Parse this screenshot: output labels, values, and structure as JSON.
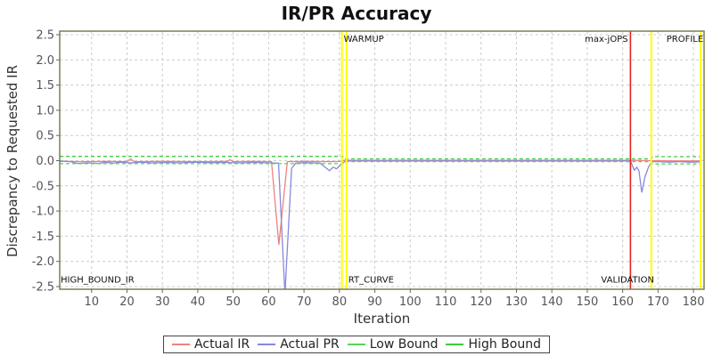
{
  "chart_data": {
    "type": "line",
    "title": "IR/PR Accuracy",
    "xlabel": "Iteration",
    "ylabel": "Discrepancy to Requested IR",
    "xlim": [
      1,
      183
    ],
    "ylim": [
      -2.5,
      2.5
    ],
    "grid": true,
    "legend_position": "bottom",
    "x_ticks": [
      10,
      20,
      30,
      40,
      50,
      60,
      70,
      80,
      90,
      100,
      110,
      120,
      130,
      140,
      150,
      160,
      170,
      180
    ],
    "y_ticks": [
      "2.5",
      "2.0",
      "1.5",
      "1.0",
      "0.5",
      "0.0",
      "-0.5",
      "-1.0",
      "-1.5",
      "-2.0",
      "-2.5"
    ],
    "colors": {
      "grid": "#cccccc",
      "border": "#74744a",
      "tick": "#666666",
      "tick_label": "#555555",
      "annotation": "#111111",
      "warmup_marker": "#ffff00",
      "max_jops_marker": "#e82222"
    },
    "series": [
      {
        "name": "Actual IR",
        "color": "#f08080",
        "style": "solid",
        "points": [
          [
            1,
            -0.015
          ],
          [
            8,
            -0.02
          ],
          [
            15,
            -0.015
          ],
          [
            20,
            -0.02
          ],
          [
            21,
            0.035
          ],
          [
            22,
            -0.02
          ],
          [
            30,
            -0.015
          ],
          [
            40,
            -0.02
          ],
          [
            48.5,
            -0.015
          ],
          [
            49,
            0.02
          ],
          [
            50,
            -0.02
          ],
          [
            55,
            -0.015
          ],
          [
            60.8,
            -0.02
          ],
          [
            62.9,
            -1.67
          ],
          [
            65.3,
            -0.02
          ],
          [
            70,
            -0.015
          ],
          [
            78,
            -0.02
          ],
          [
            80.8,
            -0.015
          ],
          [
            81.2,
            0.005
          ],
          [
            100,
            0.005
          ],
          [
            120,
            0.005
          ],
          [
            140,
            0.005
          ],
          [
            162,
            0.005
          ],
          [
            168,
            0.0
          ],
          [
            175,
            -0.005
          ],
          [
            182,
            -0.005
          ]
        ]
      },
      {
        "name": "Actual PR",
        "color": "#8888dd",
        "style": "solid",
        "points": [
          [
            1,
            -0.005
          ],
          [
            4,
            -0.02
          ],
          [
            6,
            -0.055
          ],
          [
            9,
            -0.045
          ],
          [
            12,
            -0.055
          ],
          [
            14,
            -0.03
          ],
          [
            16,
            -0.05
          ],
          [
            18,
            -0.03
          ],
          [
            21,
            -0.045
          ],
          [
            24,
            -0.03
          ],
          [
            27,
            -0.045
          ],
          [
            31,
            -0.035
          ],
          [
            35,
            -0.045
          ],
          [
            39,
            -0.03
          ],
          [
            44,
            -0.04
          ],
          [
            48,
            -0.035
          ],
          [
            52,
            -0.045
          ],
          [
            56,
            -0.035
          ],
          [
            60,
            -0.045
          ],
          [
            62.8,
            -0.05
          ],
          [
            64.6,
            -2.65
          ],
          [
            66.5,
            -0.15
          ],
          [
            67.7,
            -0.05
          ],
          [
            70,
            -0.04
          ],
          [
            73,
            -0.045
          ],
          [
            74.5,
            -0.05
          ],
          [
            77.2,
            -0.2
          ],
          [
            78.2,
            -0.13
          ],
          [
            79.2,
            -0.16
          ],
          [
            80.5,
            -0.07
          ],
          [
            81.8,
            -0.005
          ],
          [
            90,
            -0.005
          ],
          [
            110,
            -0.005
          ],
          [
            130,
            -0.005
          ],
          [
            150,
            -0.005
          ],
          [
            162.2,
            -0.005
          ],
          [
            163.3,
            -0.19
          ],
          [
            164,
            -0.13
          ],
          [
            164.6,
            -0.2
          ],
          [
            165.4,
            -0.63
          ],
          [
            166.3,
            -0.32
          ],
          [
            167.3,
            -0.13
          ],
          [
            168.2,
            -0.02
          ],
          [
            170,
            -0.02
          ],
          [
            173,
            -0.03
          ],
          [
            176,
            -0.02
          ],
          [
            179,
            -0.03
          ],
          [
            182,
            -0.025
          ]
        ]
      },
      {
        "name": "Low Bound",
        "color": "#55d555",
        "style": "dashed",
        "points": [
          [
            1,
            -0.06
          ],
          [
            80.9,
            -0.06
          ],
          [
            81.1,
            -0.02
          ],
          [
            168.2,
            -0.02
          ],
          [
            168.4,
            -0.065
          ],
          [
            182,
            -0.065
          ]
        ]
      },
      {
        "name": "High Bound",
        "color": "#3dcc3d",
        "style": "dashed",
        "points": [
          [
            1,
            0.085
          ],
          [
            80.9,
            0.085
          ],
          [
            81.1,
            0.035
          ],
          [
            168.2,
            0.035
          ],
          [
            168.4,
            0.08
          ],
          [
            182,
            0.08
          ]
        ]
      }
    ],
    "markers": [
      {
        "x": 80.7,
        "color": "#ffff00",
        "width": 2
      },
      {
        "x": 82.0,
        "color": "#ffff00",
        "width": 2
      },
      {
        "x": 162.2,
        "color": "#e82222",
        "width": 1.6
      },
      {
        "x": 168.1,
        "color": "#ffff00",
        "width": 2
      },
      {
        "x": 182.0,
        "color": "#ffff00",
        "width": 2
      }
    ],
    "annotations": [
      {
        "text": "WARMUP",
        "x": 81.2,
        "y": 2.36,
        "anchor": "start"
      },
      {
        "text": "max-jOPS",
        "x": 161.5,
        "y": 2.36,
        "anchor": "end"
      },
      {
        "text": "PROFILE",
        "x": 182.8,
        "y": 2.36,
        "anchor": "end"
      },
      {
        "text": "HIGH_BOUND_IR",
        "x": 1.25,
        "y": -2.42,
        "anchor": "start"
      },
      {
        "text": "RT_CURVE",
        "x": 82.5,
        "y": -2.42,
        "anchor": "start"
      },
      {
        "text": "VALIDATION",
        "x": 161.4,
        "y": -2.42,
        "anchor": "middle"
      }
    ]
  }
}
